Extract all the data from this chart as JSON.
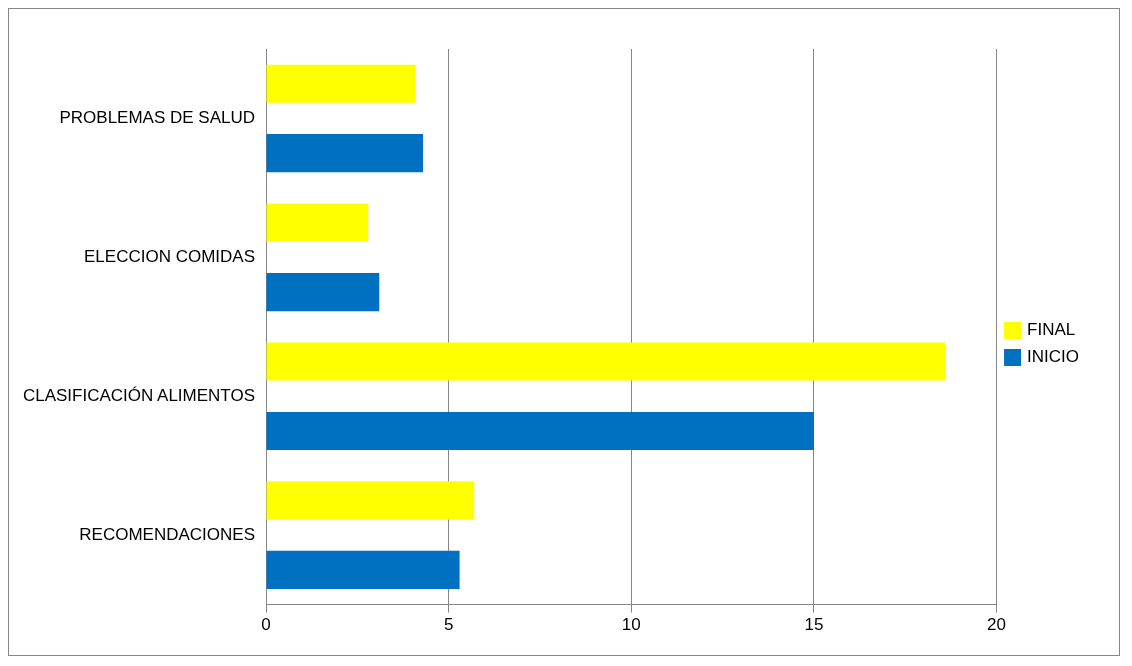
{
  "chart_data": {
    "type": "bar",
    "orientation": "horizontal",
    "categories": [
      "PROBLEMAS DE SALUD",
      "ELECCION COMIDAS",
      "CLASIFICACIÓN ALIMENTOS",
      "RECOMENDACIONES"
    ],
    "series": [
      {
        "name": "FINAL",
        "color": "#ffff00",
        "values": [
          4.1,
          2.8,
          18.6,
          5.7
        ]
      },
      {
        "name": "INICIO",
        "color": "#0070c0",
        "values": [
          4.3,
          3.1,
          15,
          5.3
        ]
      }
    ],
    "xlim": [
      0,
      20
    ],
    "xticks": [
      0,
      5,
      10,
      15,
      20
    ],
    "grid": "x",
    "legend": "right"
  }
}
